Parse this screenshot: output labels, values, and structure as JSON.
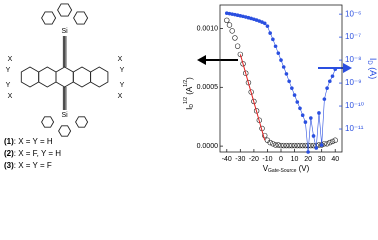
{
  "structure": {
    "atoms": {
      "si_top": "Si",
      "si_bottom": "Si",
      "x": [
        "X",
        "X",
        "X",
        "X"
      ],
      "y": [
        "Y",
        "Y",
        "Y",
        "Y"
      ]
    },
    "compounds": [
      {
        "number": "(1)",
        "text": ": X = Y = H"
      },
      {
        "number": "(2)",
        "text": ": X = F, Y = H"
      },
      {
        "number": "(3)",
        "text": ": X = Y = F"
      }
    ]
  },
  "chart_data": {
    "type": "line",
    "x": [
      -40,
      -38,
      -36,
      -34,
      -32,
      -30,
      -28,
      -26,
      -24,
      -22,
      -20,
      -18,
      -16,
      -14,
      -12,
      -10,
      -8,
      -6,
      -4,
      -2,
      0,
      2,
      4,
      6,
      8,
      10,
      12,
      14,
      16,
      18,
      20,
      22,
      24,
      26,
      28,
      30,
      32,
      34,
      36,
      38,
      40
    ],
    "series": [
      {
        "color": "#222222",
        "marker": "open-circle",
        "values": [
          0.00107,
          0.00103,
          0.00098,
          0.00092,
          0.00085,
          0.00078,
          0.0007,
          0.00062,
          0.00054,
          0.00046,
          0.00038,
          0.0003,
          0.00022,
          0.00015,
          9e-05,
          5e-05,
          3e-05,
          2e-05,
          1e-05,
          1e-05,
          5e-06,
          5e-06,
          5e-06,
          5e-06,
          5e-06,
          5e-06,
          5e-06,
          5e-06,
          5e-06,
          5e-06,
          5e-06,
          5e-06,
          5e-06,
          5e-06,
          1e-05,
          1e-05,
          2e-05,
          2e-05,
          3e-05,
          4e-05,
          5e-05
        ]
      },
      {
        "color": "#2a4fe0",
        "marker": "dot",
        "axis": "y2",
        "values": [
          1.1e-06,
          1.05e-06,
          1e-06,
          9.5e-07,
          9e-07,
          8.5e-07,
          8e-07,
          7.5e-07,
          7e-07,
          6.5e-07,
          6e-07,
          5.5e-07,
          5e-07,
          4.5e-07,
          4e-07,
          3e-07,
          1.5e-07,
          8e-08,
          4e-08,
          2e-08,
          1e-08,
          5e-09,
          2.5e-09,
          1.2e-09,
          6e-10,
          3e-10,
          1.5e-10,
          8e-11,
          4e-11,
          2e-11,
          1e-12,
          3e-11,
          5e-12,
          1.5e-12,
          5e-11,
          2e-12,
          2e-10,
          6e-10,
          1.2e-09,
          2e-09,
          4e-09
        ]
      }
    ],
    "fit_line": {
      "color": "#e02020",
      "x": [
        -30,
        -12
      ],
      "values": [
        0.00078,
        5e-05
      ]
    },
    "xlim": [
      -45,
      45
    ],
    "xticks": [
      -40,
      -30,
      -20,
      -10,
      0,
      10,
      20,
      30,
      40
    ],
    "ylim": [
      -5e-05,
      0.0012
    ],
    "yticks": [
      {
        "value": 0,
        "label": "0.0000"
      },
      {
        "value": 0.0005,
        "label": "0.0005"
      },
      {
        "value": 0.001,
        "label": "0.0010"
      }
    ],
    "y2lim": [
      1e-12,
      2.5e-06
    ],
    "y2scale": "log",
    "y2ticks": [
      {
        "value": 1e-11,
        "label": "10⁻¹¹"
      },
      {
        "value": 1e-10,
        "label": "10⁻¹⁰"
      },
      {
        "value": 1e-09,
        "label": "10⁻⁹"
      },
      {
        "value": 1e-08,
        "label": "10⁻⁸"
      },
      {
        "value": 1e-07,
        "label": "10⁻⁷"
      },
      {
        "value": 1e-06,
        "label": "10⁻⁶"
      }
    ],
    "xlabel": [
      "V",
      "Gate-Source",
      " (V)"
    ],
    "ylabel": [
      "I",
      "D",
      "1/2",
      " (A",
      "1/2",
      ")"
    ],
    "y2label": [
      "I",
      "D",
      " (A)"
    ],
    "y2color": "#2a4fe0"
  }
}
